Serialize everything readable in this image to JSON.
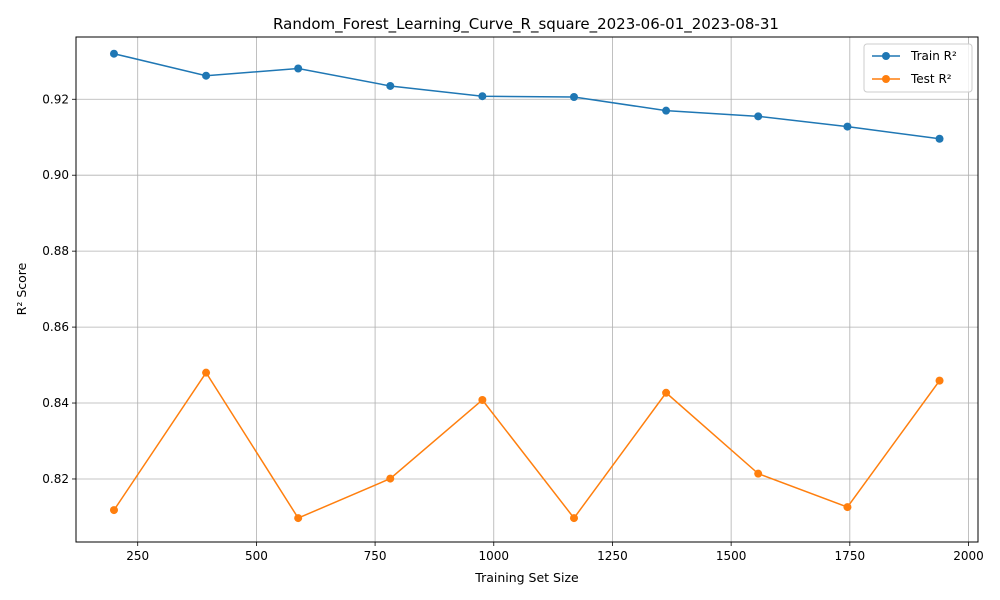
{
  "chart_data": {
    "type": "line",
    "title": "Random_Forest_Learning_Curve_R_square_2023-06-01_2023-08-31",
    "xlabel": "Training Set Size",
    "ylabel": "R² Score",
    "x": [
      200,
      394,
      588,
      782,
      976,
      1169,
      1363,
      1557,
      1745,
      1939
    ],
    "xlim": [
      120,
      2020
    ],
    "ylim": [
      0.8034,
      0.9364
    ],
    "xticks": [
      250,
      500,
      750,
      1000,
      1250,
      1500,
      1750,
      2000
    ],
    "xtick_labels": [
      "250",
      "500",
      "750",
      "1000",
      "1250",
      "1500",
      "1750",
      "2000"
    ],
    "yticks": [
      0.82,
      0.84,
      0.86,
      0.88,
      0.9,
      0.92
    ],
    "ytick_labels": [
      "0.82",
      "0.84",
      "0.86",
      "0.88",
      "0.90",
      "0.92"
    ],
    "grid": true,
    "legend_position": "top-right",
    "series": [
      {
        "name": "Train R²",
        "color": "#1f77b4",
        "values": [
          0.932,
          0.9262,
          0.9281,
          0.9235,
          0.9208,
          0.9206,
          0.917,
          0.9155,
          0.9128,
          0.9096
        ]
      },
      {
        "name": "Test R²",
        "color": "#ff7f0e",
        "values": [
          0.8118,
          0.848,
          0.8097,
          0.8201,
          0.8408,
          0.8097,
          0.8427,
          0.8214,
          0.8126,
          0.8459
        ]
      }
    ]
  }
}
